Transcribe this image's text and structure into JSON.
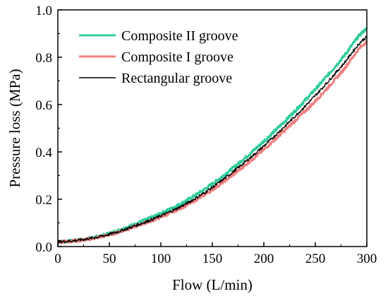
{
  "chart_data": {
    "type": "line",
    "title": "",
    "xlabel": "Flow (L/min)",
    "ylabel": "Pressure loss (MPa)",
    "xlim": [
      0,
      300
    ],
    "ylim": [
      0,
      1.0
    ],
    "x_ticks": [
      0,
      50,
      100,
      150,
      200,
      250,
      300
    ],
    "y_ticks": [
      0.0,
      0.2,
      0.4,
      0.6,
      0.8,
      1.0
    ],
    "x_tick_labels": [
      "0",
      "50",
      "100",
      "150",
      "200",
      "250",
      "300"
    ],
    "y_tick_labels": [
      "0.0",
      "0.2",
      "0.4",
      "0.6",
      "0.8",
      "1.0"
    ],
    "grid": false,
    "legend_position": "top-left",
    "x": [
      0,
      25,
      50,
      75,
      100,
      125,
      150,
      175,
      200,
      225,
      250,
      275,
      300
    ],
    "series": [
      {
        "name": "Composite II groove",
        "color": "#2ecc9a",
        "values": [
          0.02,
          0.03,
          0.055,
          0.095,
          0.14,
          0.195,
          0.265,
          0.35,
          0.445,
          0.55,
          0.665,
          0.79,
          0.92
        ]
      },
      {
        "name": "Composite I groove",
        "color": "#f08080",
        "values": [
          0.02,
          0.028,
          0.05,
          0.085,
          0.125,
          0.175,
          0.24,
          0.32,
          0.41,
          0.51,
          0.615,
          0.735,
          0.865
        ]
      },
      {
        "name": "Rectangular groove",
        "color": "#000000",
        "values": [
          0.02,
          0.03,
          0.052,
          0.088,
          0.13,
          0.182,
          0.25,
          0.333,
          0.425,
          0.528,
          0.638,
          0.76,
          0.885
        ]
      }
    ]
  }
}
